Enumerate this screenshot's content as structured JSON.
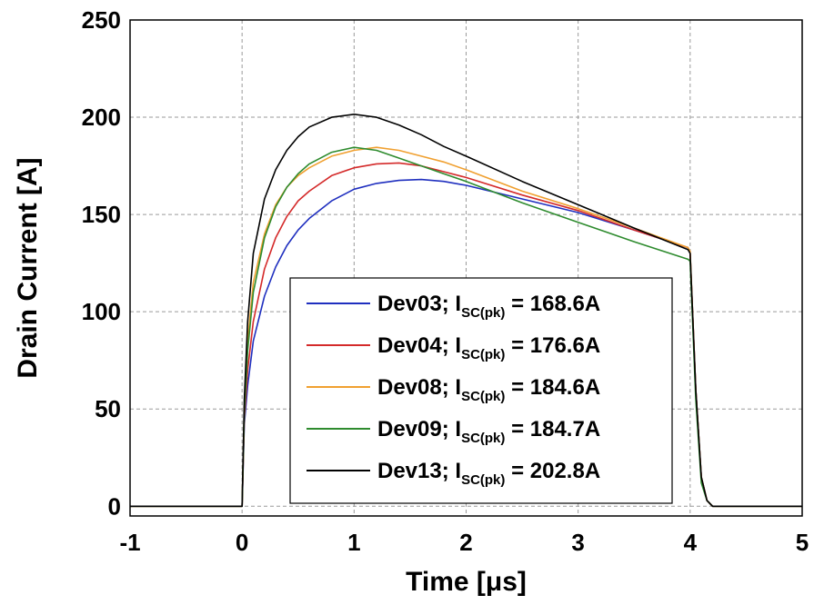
{
  "chart_data": {
    "type": "line",
    "xlabel": "Time [μs]",
    "ylabel": "Drain Current [A]",
    "xlim": [
      -1,
      5
    ],
    "ylim": [
      -5,
      250
    ],
    "xticks": [
      "-1",
      "0",
      "1",
      "2",
      "3",
      "4",
      "5"
    ],
    "yticks": [
      "0",
      "50",
      "100",
      "150",
      "200",
      "250"
    ],
    "grid": true,
    "legend_position": "bottom-right",
    "series": [
      {
        "name": "Dev03; I_SC(pk) = 168.6A",
        "label_main": "Dev03; I",
        "label_sub": "SC(pk)",
        "label_tail": " = 168.6A",
        "color": "#1f2fbf",
        "x": [
          -1,
          0,
          0.02,
          0.05,
          0.1,
          0.2,
          0.3,
          0.4,
          0.5,
          0.6,
          0.8,
          1.0,
          1.2,
          1.4,
          1.6,
          1.8,
          2.0,
          2.5,
          3.0,
          3.5,
          3.98,
          4.0,
          4.05,
          4.1,
          4.15,
          4.2,
          5
        ],
        "y": [
          0,
          0,
          42,
          62,
          85,
          108,
          123,
          134,
          142,
          148,
          157,
          163,
          166,
          167.5,
          168,
          167,
          165,
          158,
          151,
          142,
          133,
          130,
          60,
          15,
          3,
          0,
          0
        ]
      },
      {
        "name": "Dev04; I_SC(pk) = 176.6A",
        "label_main": "Dev04; I",
        "label_sub": "SC(pk)",
        "label_tail": " = 176.6A",
        "color": "#d42a2a",
        "x": [
          -1,
          0,
          0.02,
          0.05,
          0.1,
          0.2,
          0.3,
          0.4,
          0.5,
          0.6,
          0.8,
          1.0,
          1.2,
          1.4,
          1.6,
          1.8,
          2.0,
          2.5,
          3.0,
          3.5,
          3.98,
          4.0,
          4.05,
          4.1,
          4.15,
          4.2,
          5
        ],
        "y": [
          0,
          0,
          45,
          70,
          95,
          122,
          138,
          149,
          157,
          162,
          170,
          174,
          176,
          176.5,
          175,
          172,
          169,
          160,
          152,
          142,
          133,
          130,
          60,
          15,
          3,
          0,
          0
        ]
      },
      {
        "name": "Dev08; I_SC(pk) = 184.6A",
        "label_main": "Dev08; I",
        "label_sub": "SC(pk)",
        "label_tail": " = 184.6A",
        "color": "#f0a030",
        "x": [
          -1,
          0,
          0.02,
          0.05,
          0.1,
          0.2,
          0.3,
          0.4,
          0.5,
          0.6,
          0.8,
          1.0,
          1.2,
          1.4,
          1.6,
          1.8,
          2.0,
          2.5,
          3.0,
          3.5,
          3.98,
          4.0,
          4.05,
          4.1,
          4.15,
          4.2,
          5
        ],
        "y": [
          0,
          0,
          50,
          85,
          115,
          140,
          155,
          164,
          170,
          174,
          180,
          183,
          184.5,
          183,
          180,
          177,
          173,
          162,
          153,
          143,
          133,
          131,
          60,
          15,
          3,
          0,
          0
        ]
      },
      {
        "name": "Dev09; I_SC(pk) = 184.7A",
        "label_main": "Dev09; I",
        "label_sub": "SC(pk)",
        "label_tail": " = 184.7A",
        "color": "#2e8b2e",
        "x": [
          -1,
          0,
          0.02,
          0.05,
          0.1,
          0.2,
          0.3,
          0.4,
          0.5,
          0.6,
          0.8,
          1.0,
          1.2,
          1.4,
          1.6,
          1.8,
          2.0,
          2.5,
          3.0,
          3.5,
          3.98,
          4.0,
          4.05,
          4.1,
          4.15,
          4.2,
          5
        ],
        "y": [
          0,
          0,
          48,
          80,
          110,
          138,
          154,
          164,
          171,
          176,
          182,
          184.5,
          183,
          179,
          175,
          171,
          167,
          156,
          146,
          136,
          127,
          126,
          55,
          12,
          3,
          0,
          0
        ]
      },
      {
        "name": "Dev13; I_SC(pk) = 202.8A",
        "label_main": "Dev13; I",
        "label_sub": "SC(pk)",
        "label_tail": " = 202.8A",
        "color": "#000000",
        "x": [
          -1,
          0,
          0.02,
          0.05,
          0.1,
          0.2,
          0.3,
          0.4,
          0.5,
          0.6,
          0.8,
          1.0,
          1.2,
          1.4,
          1.6,
          1.8,
          2.0,
          2.5,
          3.0,
          3.5,
          3.98,
          4.0,
          4.05,
          4.1,
          4.15,
          4.2,
          5
        ],
        "y": [
          0,
          0,
          55,
          95,
          130,
          158,
          173,
          183,
          190,
          195,
          200,
          201.5,
          200,
          196,
          191,
          185,
          180,
          167,
          155,
          143,
          132,
          130,
          60,
          15,
          3,
          0,
          0
        ]
      }
    ]
  }
}
